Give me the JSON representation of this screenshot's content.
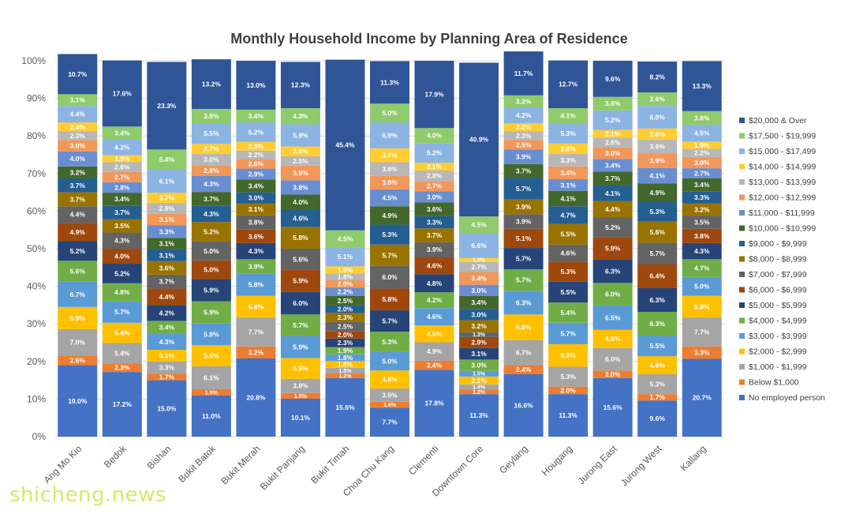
{
  "watermark": "shicheng.news",
  "chart_data": {
    "type": "bar",
    "stacked": true,
    "normalized_100": true,
    "title": "Monthly Household Income by Planning Area of Residence",
    "xlabel": "",
    "ylabel": "",
    "ylim": [
      0,
      100
    ],
    "yticks": [
      "0%",
      "10%",
      "20%",
      "30%",
      "40%",
      "50%",
      "60%",
      "70%",
      "80%",
      "90%",
      "100%"
    ],
    "legend_position": "right",
    "categories": [
      "Ang Mo Kio",
      "Bedok",
      "Bishan",
      "Bukit Batok",
      "Bukit Merah",
      "Bukit Panjang",
      "Bukit Timah",
      "Choa Chu Kang",
      "Clementi",
      "Downtown Core",
      "Geylang",
      "Hougang",
      "Jurong East",
      "Jurong West",
      "Kallang"
    ],
    "series": [
      {
        "name": "No employed person",
        "color": "#4472c4",
        "values": [
          19.0,
          17.2,
          15.0,
          11.0,
          20.8,
          10.1,
          15.6,
          7.7,
          17.8,
          11.3,
          16.6,
          11.3,
          15.6,
          9.6,
          20.7
        ]
      },
      {
        "name": "Below $1,000",
        "color": "#ed7d31",
        "values": [
          2.6,
          2.3,
          1.7,
          1.6,
          3.2,
          1.5,
          1.2,
          1.6,
          2.4,
          1.2,
          2.4,
          2.0,
          2.0,
          1.7,
          3.3
        ]
      },
      {
        "name": "$1,000 - $1,999",
        "color": "#a5a5a5",
        "values": [
          7.0,
          5.4,
          3.3,
          6.1,
          7.7,
          3.8,
          1.5,
          3.5,
          4.9,
          1.4,
          6.7,
          5.3,
          6.0,
          5.3,
          7.7
        ]
      },
      {
        "name": "$2,000 - $2,999",
        "color": "#ffc000",
        "values": [
          5.9,
          5.4,
          3.1,
          5.6,
          5.8,
          5.5,
          1.8,
          4.8,
          4.5,
          2.1,
          6.8,
          6.0,
          4.8,
          4.8,
          5.8
        ]
      },
      {
        "name": "$3,000 - $3,999",
        "color": "#5b9bd5",
        "values": [
          6.7,
          5.7,
          4.3,
          5.8,
          5.8,
          5.9,
          1.8,
          5.0,
          4.6,
          1.5,
          6.3,
          5.7,
          6.5,
          5.5,
          5.0
        ]
      },
      {
        "name": "$4,000 - $4,999",
        "color": "#70ad47",
        "values": [
          5.6,
          4.8,
          3.4,
          5.9,
          3.9,
          5.7,
          1.9,
          5.3,
          4.2,
          3.0,
          5.7,
          5.4,
          6.0,
          6.3,
          4.7
        ]
      },
      {
        "name": "$5,000 - $5,999",
        "color": "#264478",
        "values": [
          5.2,
          5.2,
          4.2,
          5.9,
          4.3,
          6.0,
          2.3,
          5.7,
          4.8,
          3.1,
          5.7,
          5.5,
          6.3,
          6.3,
          4.3
        ]
      },
      {
        "name": "$6,000 - $6,999",
        "color": "#9e480e",
        "values": [
          4.9,
          4.0,
          4.4,
          5.0,
          3.6,
          5.9,
          2.0,
          5.8,
          4.6,
          2.9,
          5.1,
          5.3,
          5.9,
          6.4,
          3.8
        ]
      },
      {
        "name": "$7,000 - $7,999",
        "color": "#636363",
        "values": [
          4.4,
          4.3,
          3.7,
          5.0,
          3.8,
          5.6,
          2.5,
          6.0,
          3.9,
          1.3,
          3.9,
          4.6,
          5.2,
          5.7,
          3.5
        ]
      },
      {
        "name": "$8,000 - $8,999",
        "color": "#997300",
        "values": [
          3.7,
          3.5,
          3.6,
          5.2,
          3.1,
          5.8,
          2.3,
          5.7,
          3.7,
          3.2,
          3.9,
          5.5,
          4.4,
          5.6,
          3.2
        ]
      },
      {
        "name": "$9,000 - $9,999",
        "color": "#255e91",
        "values": [
          3.7,
          3.7,
          3.1,
          4.3,
          3.0,
          4.6,
          2.0,
          5.3,
          3.3,
          3.0,
          5.7,
          4.7,
          4.1,
          5.3,
          3.3
        ]
      },
      {
        "name": "$10,000 - $10,999",
        "color": "#43682b",
        "values": [
          3.2,
          3.4,
          3.1,
          3.7,
          3.4,
          4.0,
          2.5,
          4.9,
          3.6,
          3.4,
          3.7,
          4.1,
          3.7,
          4.9,
          3.4
        ]
      },
      {
        "name": "$11,000 - $11,999",
        "color": "#698ed0",
        "values": [
          4.0,
          2.8,
          3.3,
          4.3,
          2.9,
          3.8,
          2.2,
          4.5,
          3.0,
          3.0,
          3.9,
          3.1,
          3.4,
          4.1,
          2.7
        ]
      },
      {
        "name": "$12,000 - $12,999",
        "color": "#f1975a",
        "values": [
          3.0,
          2.7,
          3.1,
          2.8,
          2.6,
          3.9,
          2.0,
          3.6,
          2.7,
          3.4,
          2.5,
          3.4,
          3.0,
          3.9,
          3.0
        ]
      },
      {
        "name": "$13,000 - $13,999",
        "color": "#b7b7b7",
        "values": [
          2.3,
          2.6,
          2.9,
          3.0,
          2.2,
          2.5,
          1.8,
          3.6,
          2.8,
          2.7,
          2.3,
          3.3,
          2.6,
          3.6,
          2.2
        ]
      },
      {
        "name": "$14,000 - $14,999",
        "color": "#ffcd33",
        "values": [
          2.4,
          1.9,
          2.7,
          2.7,
          2.3,
          2.6,
          1.9,
          3.7,
          2.1,
          1.0,
          2.2,
          2.8,
          2.1,
          3.0,
          1.9
        ]
      },
      {
        "name": "$15,000 - $17,499",
        "color": "#8cb4e2",
        "values": [
          4.4,
          4.2,
          6.1,
          5.5,
          5.2,
          5.9,
          5.1,
          6.9,
          5.2,
          6.6,
          4.2,
          5.3,
          5.2,
          6.0,
          4.5
        ]
      },
      {
        "name": "$17,500 - $19,999",
        "color": "#8fca6b",
        "values": [
          3.1,
          3.4,
          5.4,
          3.8,
          3.4,
          4.3,
          4.5,
          5.0,
          4.0,
          4.5,
          3.2,
          4.1,
          3.6,
          3.6,
          3.6
        ]
      },
      {
        "name": "$20,000 & Over",
        "color": "#2f5597",
        "values": [
          10.7,
          17.6,
          23.3,
          13.2,
          13.0,
          12.3,
          45.4,
          11.3,
          17.9,
          40.9,
          11.7,
          12.7,
          9.6,
          8.2,
          13.3
        ]
      }
    ]
  }
}
